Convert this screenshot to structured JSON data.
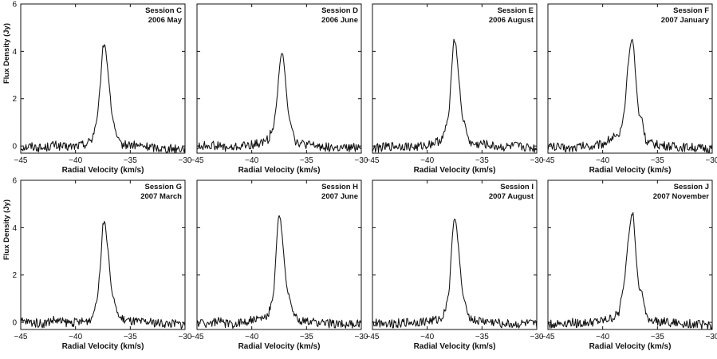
{
  "figure": {
    "shared_ylabel": "Flux Density (Jy)",
    "xlabel": "Radial Velocity (km/s)"
  },
  "chart_data": [
    {
      "type": "line",
      "title": "",
      "panel_label": [
        "Session C",
        "2006 May"
      ],
      "xlabel": "Radial Velocity (km/s)",
      "ylabel": "Flux Density (Jy)",
      "xlim": [
        -45,
        -30
      ],
      "ylim": [
        -0.3,
        6
      ],
      "xticks": [
        -45,
        -40,
        -35,
        -30
      ],
      "yticks": [
        0,
        2,
        4,
        6
      ],
      "grid": false,
      "x": [
        -45,
        -44,
        -43,
        -42,
        -41,
        -40,
        -39,
        -38.5,
        -38,
        -37.7,
        -37.5,
        -37.3,
        -37,
        -36.7,
        -36.5,
        -36.3,
        -36,
        -35.5,
        -35,
        -34,
        -33,
        -32,
        -31,
        -30
      ],
      "series": [
        {
          "values": [
            -0.05,
            0,
            -0.1,
            0.05,
            -0.05,
            0,
            0.1,
            0.3,
            1.2,
            2.8,
            4.2,
            4.3,
            3.0,
            1.4,
            1.0,
            0.5,
            0.1,
            0.05,
            0.05,
            0,
            -0.05,
            -0.1,
            -0.1,
            -0.1
          ]
        }
      ]
    },
    {
      "type": "line",
      "title": "",
      "panel_label": [
        "Session D",
        "2006 June"
      ],
      "xlabel": "Radial Velocity (km/s)",
      "ylabel": "",
      "xlim": [
        -45,
        -30
      ],
      "ylim": [
        -0.3,
        6
      ],
      "xticks": [
        -45,
        -40,
        -35,
        -30
      ],
      "yticks": [
        0,
        2,
        4,
        6
      ],
      "grid": false,
      "x": [
        -45,
        -44,
        -43,
        -42,
        -41,
        -40,
        -39,
        -38.5,
        -38,
        -37.7,
        -37.4,
        -37.2,
        -37,
        -36.7,
        -36.4,
        -36.2,
        -36,
        -35.5,
        -35,
        -34,
        -33,
        -32,
        -31,
        -30
      ],
      "series": [
        {
          "values": [
            -0.05,
            0.05,
            0,
            -0.1,
            0,
            0.05,
            0.15,
            0.3,
            0.8,
            2.0,
            3.7,
            4.0,
            3.2,
            1.5,
            0.9,
            0.6,
            0.2,
            0.1,
            0.05,
            0,
            -0.05,
            -0.1,
            -0.1,
            0
          ]
        }
      ]
    },
    {
      "type": "line",
      "title": "",
      "panel_label": [
        "Session E",
        "2006 August"
      ],
      "xlabel": "Radial Velocity (km/s)",
      "ylabel": "",
      "xlim": [
        -45,
        -30
      ],
      "ylim": [
        -0.3,
        6
      ],
      "xticks": [
        -45,
        -40,
        -35,
        -30
      ],
      "yticks": [
        0,
        2,
        4,
        6
      ],
      "grid": false,
      "x": [
        -45,
        -44,
        -43,
        -42,
        -41,
        -40,
        -39,
        -38.5,
        -38,
        -37.8,
        -37.6,
        -37.4,
        -37.1,
        -36.8,
        -36.6,
        -36.3,
        -36,
        -35.5,
        -35,
        -34,
        -33,
        -32,
        -31,
        -30
      ],
      "series": [
        {
          "values": [
            -0.1,
            -0.05,
            0,
            0,
            -0.05,
            0.05,
            0.2,
            0.4,
            1.4,
            3.0,
            4.5,
            4.4,
            2.8,
            1.2,
            1.0,
            0.4,
            0.1,
            0.05,
            0.1,
            0,
            -0.05,
            0,
            -0.05,
            -0.1
          ]
        }
      ]
    },
    {
      "type": "line",
      "title": "",
      "panel_label": [
        "Session F",
        "2007 January"
      ],
      "xlabel": "Radial Velocity (km/s)",
      "ylabel": "",
      "xlim": [
        -45,
        -30
      ],
      "ylim": [
        -0.3,
        6
      ],
      "xticks": [
        -45,
        -40,
        -35,
        -30
      ],
      "yticks": [
        0,
        2,
        4,
        6
      ],
      "grid": false,
      "x": [
        -45,
        -44,
        -43,
        -42,
        -41,
        -40,
        -39,
        -38.5,
        -38,
        -37.7,
        -37.4,
        -37.2,
        -37,
        -36.7,
        -36.4,
        -36.2,
        -36,
        -35.5,
        -35,
        -34,
        -33,
        -32,
        -31,
        -30
      ],
      "series": [
        {
          "values": [
            0,
            -0.05,
            -0.1,
            0,
            0,
            0.1,
            0.4,
            0.3,
            1.5,
            3.4,
            4.5,
            4.4,
            3.0,
            1.3,
            1.2,
            0.5,
            0.2,
            0.1,
            0.05,
            0,
            -0.05,
            -0.05,
            -0.1,
            -0.1
          ]
        }
      ]
    },
    {
      "type": "line",
      "title": "",
      "panel_label": [
        "Session G",
        "2007 March"
      ],
      "xlabel": "Radial Velocity (km/s)",
      "ylabel": "Flux Density (Jy)",
      "xlim": [
        -45,
        -30
      ],
      "ylim": [
        -0.3,
        6
      ],
      "xticks": [
        -45,
        -40,
        -35,
        -30
      ],
      "yticks": [
        0,
        2,
        4,
        6
      ],
      "grid": false,
      "x": [
        -45,
        -44,
        -43,
        -42,
        -41,
        -40,
        -39,
        -38.5,
        -38,
        -37.7,
        -37.5,
        -37.3,
        -37,
        -36.7,
        -36.5,
        -36.3,
        -36,
        -35.5,
        -35,
        -34,
        -33,
        -32,
        -31,
        -30
      ],
      "series": [
        {
          "values": [
            0.05,
            0,
            -0.05,
            0.1,
            0,
            0,
            0.05,
            0.2,
            1.0,
            2.6,
            4.2,
            4.2,
            2.9,
            1.3,
            1.0,
            0.6,
            0.2,
            0.1,
            0.05,
            0,
            0,
            -0.05,
            -0.05,
            -0.1
          ]
        }
      ]
    },
    {
      "type": "line",
      "title": "",
      "panel_label": [
        "Session H",
        "2007 June"
      ],
      "xlabel": "Radial Velocity (km/s)",
      "ylabel": "",
      "xlim": [
        -45,
        -30
      ],
      "ylim": [
        -0.3,
        6
      ],
      "xticks": [
        -45,
        -40,
        -35,
        -30
      ],
      "yticks": [
        0,
        2,
        4,
        6
      ],
      "grid": false,
      "x": [
        -45,
        -44,
        -43,
        -42,
        -41,
        -40,
        -39,
        -38.5,
        -38,
        -37.8,
        -37.6,
        -37.4,
        -37.1,
        -36.8,
        -36.5,
        -36.3,
        -36,
        -35.5,
        -35,
        -34,
        -33,
        -32,
        -31,
        -30
      ],
      "series": [
        {
          "values": [
            0,
            -0.05,
            0.05,
            -0.1,
            0,
            0.1,
            0.15,
            0.3,
            1.2,
            2.8,
            4.4,
            4.5,
            3.0,
            1.4,
            1.0,
            0.5,
            0.2,
            0.1,
            0,
            0,
            -0.05,
            -0.05,
            -0.1,
            -0.05
          ]
        }
      ]
    },
    {
      "type": "line",
      "title": "",
      "panel_label": [
        "Session I",
        "2007 August"
      ],
      "xlabel": "Radial Velocity (km/s)",
      "ylabel": "",
      "xlim": [
        -45,
        -30
      ],
      "ylim": [
        -0.3,
        6
      ],
      "xticks": [
        -45,
        -40,
        -35,
        -30
      ],
      "yticks": [
        0,
        2,
        4,
        6
      ],
      "grid": false,
      "x": [
        -45,
        -44,
        -43,
        -42,
        -41,
        -40,
        -39,
        -38.5,
        -38,
        -37.8,
        -37.6,
        -37.4,
        -37.1,
        -36.8,
        -36.6,
        -36.3,
        -36,
        -35.5,
        -35,
        -34,
        -33,
        -32,
        -31,
        -30
      ],
      "series": [
        {
          "values": [
            -0.05,
            0,
            -0.05,
            0,
            0,
            0.05,
            0.1,
            0.3,
            1.3,
            2.9,
            4.3,
            4.4,
            2.9,
            1.3,
            0.9,
            0.4,
            0.15,
            0.05,
            0.05,
            0,
            -0.05,
            -0.1,
            -0.05,
            -0.1
          ]
        }
      ]
    },
    {
      "type": "line",
      "title": "",
      "panel_label": [
        "Session J",
        "2007 November"
      ],
      "xlabel": "Radial Velocity (km/s)",
      "ylabel": "",
      "xlim": [
        -45,
        -30
      ],
      "ylim": [
        -0.3,
        6
      ],
      "xticks": [
        -45,
        -40,
        -35,
        -30
      ],
      "yticks": [
        0,
        2,
        4,
        6
      ],
      "grid": false,
      "x": [
        -45,
        -44,
        -43,
        -42,
        -41,
        -40,
        -39,
        -38.5,
        -38,
        -37.7,
        -37.4,
        -37.2,
        -37,
        -36.7,
        -36.4,
        -36.2,
        -36,
        -35.5,
        -35,
        -34,
        -33,
        -32,
        -31,
        -30
      ],
      "series": [
        {
          "values": [
            -0.1,
            -0.05,
            0,
            -0.05,
            0,
            0.05,
            0.2,
            0.4,
            1.8,
            3.4,
            4.5,
            4.6,
            3.1,
            1.4,
            1.3,
            0.7,
            0.2,
            0.1,
            0.05,
            0,
            -0.05,
            -0.05,
            -0.1,
            -0.1
          ]
        }
      ]
    }
  ]
}
